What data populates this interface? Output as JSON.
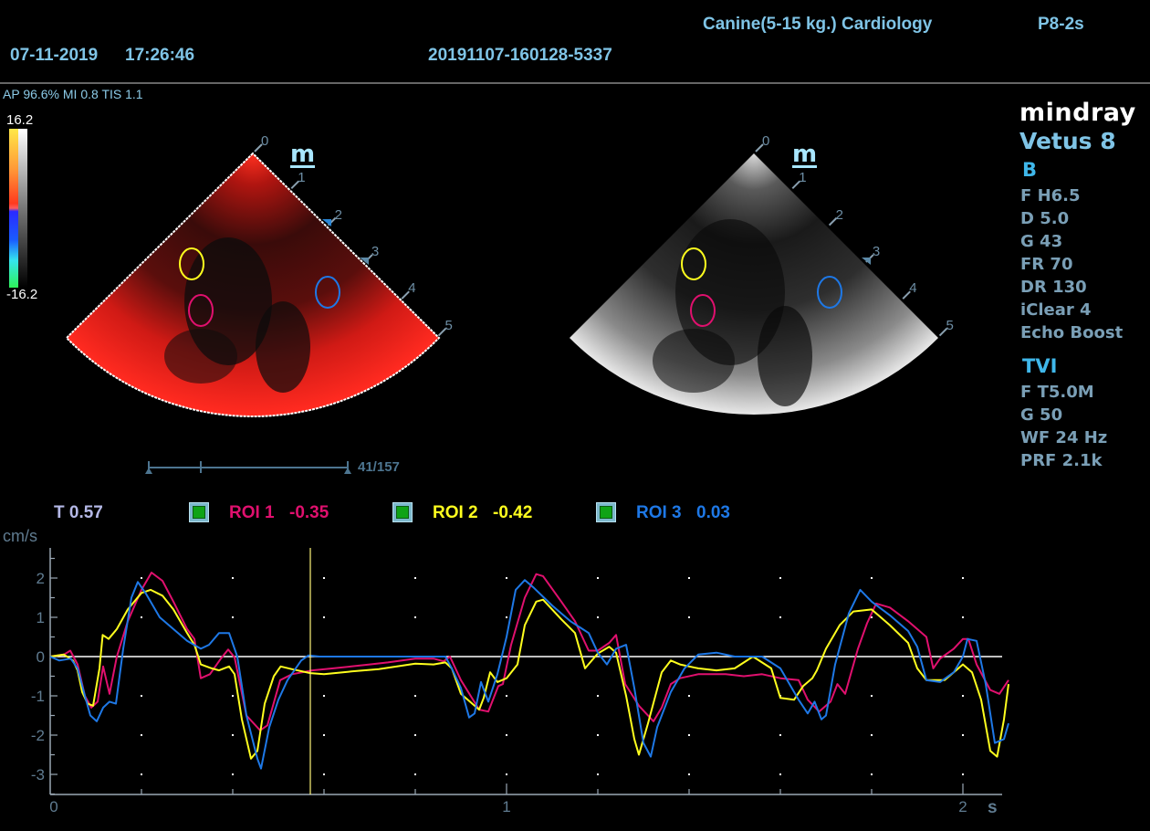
{
  "header": {
    "preset": "Canine(5-15 kg.) Cardiology",
    "probe": "P8-2s",
    "date": "07-11-2019",
    "time": "17:26:46",
    "exam_id": "20191107-160128-5337",
    "acoustic": "AP 96.6%  MI 0.8 TIS 1.1"
  },
  "color_bar": {
    "max": "16.2",
    "min": "-16.2"
  },
  "brand": {
    "logo": "mindray",
    "model": "Vetus 8"
  },
  "b_mode": {
    "title": "B",
    "params": [
      "F H6.5",
      "D 5.0",
      "G 43",
      "FR 70",
      "DR 130",
      "iClear 4",
      "Echo Boost"
    ]
  },
  "tvi_mode": {
    "title": "TVI",
    "params": [
      "F T5.0M",
      "G 50",
      "WF 24 Hz",
      "PRF 2.1k"
    ]
  },
  "image": {
    "depth_marks": [
      "0",
      "1",
      "2",
      "3",
      "4",
      "5"
    ],
    "m_marker": "m",
    "cine_frame": "41/157"
  },
  "roi_colors": {
    "roi1": "#e0106e",
    "roi2": "#ffff1e",
    "roi3": "#1e78e6"
  },
  "trace_panel": {
    "cursor_time": "T 0.57",
    "rois": [
      {
        "label": "ROI 1",
        "value": "-0.35",
        "color": "#e0106e"
      },
      {
        "label": "ROI 2",
        "value": "-0.42",
        "color": "#ffff1e"
      },
      {
        "label": "ROI 3",
        "value": "0.03",
        "color": "#1e78e6"
      }
    ]
  },
  "chart_data": {
    "type": "line",
    "title": "",
    "ylabel": "cm/s",
    "xlabel": "s",
    "xlim": [
      0,
      2.09
    ],
    "ylim": [
      -3.5,
      2.75
    ],
    "x_ticks": [
      "0",
      "1",
      "2"
    ],
    "x_tick_values": [
      0,
      1,
      2
    ],
    "y_ticks": [
      "2",
      "1",
      "0",
      "-1",
      "-2",
      "-3"
    ],
    "y_tick_values": [
      2,
      1,
      0,
      -1,
      -2,
      -3
    ],
    "grid": "dots",
    "cursor_t": 0.57,
    "series": [
      {
        "name": "ROI 1",
        "color": "#e0106e",
        "points": [
          [
            0,
            0
          ],
          [
            0.03,
            0.05
          ],
          [
            0.044,
            0.15
          ],
          [
            0.06,
            -0.2
          ],
          [
            0.076,
            -1.0
          ],
          [
            0.09,
            -1.3
          ],
          [
            0.104,
            -1.15
          ],
          [
            0.116,
            -0.25
          ],
          [
            0.13,
            -0.95
          ],
          [
            0.146,
            0
          ],
          [
            0.17,
            0.9
          ],
          [
            0.2,
            1.7
          ],
          [
            0.222,
            2.14
          ],
          [
            0.246,
            1.93
          ],
          [
            0.27,
            1.4
          ],
          [
            0.3,
            0.7
          ],
          [
            0.316,
            0.45
          ],
          [
            0.33,
            -0.55
          ],
          [
            0.35,
            -0.45
          ],
          [
            0.374,
            -0.05
          ],
          [
            0.39,
            0.18
          ],
          [
            0.404,
            -0.02
          ],
          [
            0.43,
            -1.5
          ],
          [
            0.46,
            -1.88
          ],
          [
            0.476,
            -1.75
          ],
          [
            0.504,
            -0.6
          ],
          [
            0.53,
            -0.45
          ],
          [
            0.574,
            -0.35
          ],
          [
            0.62,
            -0.3
          ],
          [
            0.66,
            -0.25
          ],
          [
            0.7,
            -0.2
          ],
          [
            0.74,
            -0.15
          ],
          [
            0.8,
            -0.05
          ],
          [
            0.84,
            -0.05
          ],
          [
            0.862,
            -0.12
          ],
          [
            0.876,
            0
          ],
          [
            0.9,
            -0.6
          ],
          [
            0.94,
            -1.35
          ],
          [
            0.96,
            -1.4
          ],
          [
            0.982,
            -0.75
          ],
          [
            0.992,
            -0.7
          ],
          [
            1.01,
            0.3
          ],
          [
            1.04,
            1.5
          ],
          [
            1.065,
            2.1
          ],
          [
            1.08,
            2.05
          ],
          [
            1.12,
            1.4
          ],
          [
            1.15,
            0.9
          ],
          [
            1.18,
            0.15
          ],
          [
            1.2,
            0.15
          ],
          [
            1.225,
            0.35
          ],
          [
            1.24,
            0.55
          ],
          [
            1.26,
            -0.7
          ],
          [
            1.29,
            -1.25
          ],
          [
            1.322,
            -1.65
          ],
          [
            1.34,
            -1.3
          ],
          [
            1.36,
            -0.7
          ],
          [
            1.38,
            -0.55
          ],
          [
            1.42,
            -0.45
          ],
          [
            1.48,
            -0.45
          ],
          [
            1.52,
            -0.5
          ],
          [
            1.56,
            -0.45
          ],
          [
            1.6,
            -0.55
          ],
          [
            1.64,
            -0.6
          ],
          [
            1.66,
            -1.1
          ],
          [
            1.685,
            -1.4
          ],
          [
            1.71,
            -1.15
          ],
          [
            1.725,
            -0.7
          ],
          [
            1.742,
            -0.95
          ],
          [
            1.77,
            0.2
          ],
          [
            1.79,
            0.85
          ],
          [
            1.81,
            1.35
          ],
          [
            1.84,
            1.25
          ],
          [
            1.88,
            0.9
          ],
          [
            1.92,
            0.5
          ],
          [
            1.935,
            -0.3
          ],
          [
            1.95,
            -0.05
          ],
          [
            1.98,
            0.2
          ],
          [
            2.0,
            0.45
          ],
          [
            2.012,
            0.45
          ],
          [
            2.03,
            -0.2
          ],
          [
            2.06,
            -0.85
          ],
          [
            2.08,
            -0.95
          ],
          [
            2.1,
            -0.6
          ]
        ]
      },
      {
        "name": "ROI 2",
        "color": "#ffff1e",
        "points": [
          [
            0,
            0
          ],
          [
            0.03,
            0.05
          ],
          [
            0.05,
            -0.1
          ],
          [
            0.06,
            -0.35
          ],
          [
            0.07,
            -0.9
          ],
          [
            0.082,
            -1.2
          ],
          [
            0.094,
            -1.25
          ],
          [
            0.108,
            -0.3
          ],
          [
            0.115,
            0.55
          ],
          [
            0.128,
            0.45
          ],
          [
            0.146,
            0.7
          ],
          [
            0.17,
            1.2
          ],
          [
            0.2,
            1.62
          ],
          [
            0.22,
            1.7
          ],
          [
            0.246,
            1.55
          ],
          [
            0.27,
            1.2
          ],
          [
            0.3,
            0.6
          ],
          [
            0.316,
            0.3
          ],
          [
            0.33,
            -0.2
          ],
          [
            0.354,
            -0.3
          ],
          [
            0.37,
            -0.35
          ],
          [
            0.392,
            -0.25
          ],
          [
            0.404,
            -0.45
          ],
          [
            0.42,
            -1.6
          ],
          [
            0.44,
            -2.6
          ],
          [
            0.454,
            -2.4
          ],
          [
            0.47,
            -1.2
          ],
          [
            0.49,
            -0.5
          ],
          [
            0.505,
            -0.25
          ],
          [
            0.53,
            -0.32
          ],
          [
            0.57,
            -0.42
          ],
          [
            0.6,
            -0.45
          ],
          [
            0.66,
            -0.38
          ],
          [
            0.72,
            -0.32
          ],
          [
            0.76,
            -0.25
          ],
          [
            0.8,
            -0.18
          ],
          [
            0.84,
            -0.2
          ],
          [
            0.866,
            -0.15
          ],
          [
            0.88,
            -0.3
          ],
          [
            0.9,
            -0.95
          ],
          [
            0.94,
            -1.35
          ],
          [
            0.95,
            -1.05
          ],
          [
            0.964,
            -0.4
          ],
          [
            0.98,
            -0.65
          ],
          [
            1.0,
            -0.55
          ],
          [
            1.024,
            -0.2
          ],
          [
            1.04,
            0.8
          ],
          [
            1.065,
            1.4
          ],
          [
            1.08,
            1.45
          ],
          [
            1.12,
            0.95
          ],
          [
            1.15,
            0.6
          ],
          [
            1.172,
            -0.3
          ],
          [
            1.2,
            0.08
          ],
          [
            1.225,
            0.25
          ],
          [
            1.24,
            0.1
          ],
          [
            1.262,
            -1.0
          ],
          [
            1.28,
            -2.1
          ],
          [
            1.29,
            -2.5
          ],
          [
            1.31,
            -1.7
          ],
          [
            1.34,
            -0.4
          ],
          [
            1.36,
            -0.1
          ],
          [
            1.38,
            -0.2
          ],
          [
            1.42,
            -0.3
          ],
          [
            1.46,
            -0.35
          ],
          [
            1.5,
            -0.3
          ],
          [
            1.54,
            0
          ],
          [
            1.58,
            -0.3
          ],
          [
            1.6,
            -1.05
          ],
          [
            1.63,
            -1.1
          ],
          [
            1.65,
            -0.75
          ],
          [
            1.67,
            -0.55
          ],
          [
            1.68,
            -0.35
          ],
          [
            1.7,
            0.2
          ],
          [
            1.73,
            0.8
          ],
          [
            1.76,
            1.15
          ],
          [
            1.8,
            1.2
          ],
          [
            1.84,
            0.8
          ],
          [
            1.88,
            0.35
          ],
          [
            1.9,
            -0.3
          ],
          [
            1.92,
            -0.6
          ],
          [
            1.96,
            -0.6
          ],
          [
            1.98,
            -0.4
          ],
          [
            2.0,
            -0.2
          ],
          [
            2.02,
            -0.4
          ],
          [
            2.04,
            -1.1
          ],
          [
            2.06,
            -2.4
          ],
          [
            2.075,
            -2.55
          ],
          [
            2.09,
            -1.6
          ],
          [
            2.1,
            -0.7
          ]
        ]
      },
      {
        "name": "ROI 3",
        "color": "#1e78e6",
        "points": [
          [
            0,
            0
          ],
          [
            0.02,
            -0.1
          ],
          [
            0.045,
            -0.05
          ],
          [
            0.06,
            -0.3
          ],
          [
            0.076,
            -1.0
          ],
          [
            0.088,
            -1.5
          ],
          [
            0.102,
            -1.65
          ],
          [
            0.116,
            -1.3
          ],
          [
            0.13,
            -1.15
          ],
          [
            0.144,
            -1.2
          ],
          [
            0.16,
            0.2
          ],
          [
            0.178,
            1.5
          ],
          [
            0.192,
            1.9
          ],
          [
            0.21,
            1.6
          ],
          [
            0.24,
            1.0
          ],
          [
            0.27,
            0.7
          ],
          [
            0.3,
            0.4
          ],
          [
            0.33,
            0.2
          ],
          [
            0.348,
            0.3
          ],
          [
            0.37,
            0.6
          ],
          [
            0.392,
            0.6
          ],
          [
            0.41,
            0
          ],
          [
            0.43,
            -1.5
          ],
          [
            0.454,
            -2.6
          ],
          [
            0.462,
            -2.85
          ],
          [
            0.48,
            -1.8
          ],
          [
            0.5,
            -1.1
          ],
          [
            0.52,
            -0.6
          ],
          [
            0.55,
            -0.1
          ],
          [
            0.566,
            0.03
          ],
          [
            0.59,
            0.0
          ],
          [
            0.66,
            0.0
          ],
          [
            0.76,
            0.0
          ],
          [
            0.84,
            0.0
          ],
          [
            0.866,
            0.0
          ],
          [
            0.88,
            -0.3
          ],
          [
            0.9,
            -0.8
          ],
          [
            0.918,
            -1.55
          ],
          [
            0.93,
            -1.45
          ],
          [
            0.944,
            -0.65
          ],
          [
            0.96,
            -1.15
          ],
          [
            0.98,
            -0.45
          ],
          [
            1.0,
            0.5
          ],
          [
            1.02,
            1.7
          ],
          [
            1.04,
            1.95
          ],
          [
            1.06,
            1.75
          ],
          [
            1.1,
            1.3
          ],
          [
            1.14,
            0.9
          ],
          [
            1.18,
            0.6
          ],
          [
            1.2,
            0.1
          ],
          [
            1.22,
            -0.2
          ],
          [
            1.24,
            0.2
          ],
          [
            1.262,
            0.3
          ],
          [
            1.28,
            -0.8
          ],
          [
            1.3,
            -2.2
          ],
          [
            1.316,
            -2.55
          ],
          [
            1.33,
            -1.8
          ],
          [
            1.36,
            -0.9
          ],
          [
            1.39,
            -0.3
          ],
          [
            1.42,
            0.05
          ],
          [
            1.46,
            0.1
          ],
          [
            1.5,
            0.0
          ],
          [
            1.56,
            0.0
          ],
          [
            1.6,
            -0.3
          ],
          [
            1.64,
            -1.1
          ],
          [
            1.66,
            -1.45
          ],
          [
            1.675,
            -1.15
          ],
          [
            1.69,
            -1.6
          ],
          [
            1.7,
            -1.5
          ],
          [
            1.72,
            -0.2
          ],
          [
            1.75,
            1.1
          ],
          [
            1.775,
            1.7
          ],
          [
            1.8,
            1.4
          ],
          [
            1.84,
            1.05
          ],
          [
            1.88,
            0.65
          ],
          [
            1.9,
            0.25
          ],
          [
            1.92,
            -0.6
          ],
          [
            1.95,
            -0.65
          ],
          [
            1.98,
            -0.4
          ],
          [
            2.0,
            0.0
          ],
          [
            2.01,
            0.45
          ],
          [
            2.03,
            0.4
          ],
          [
            2.05,
            -0.7
          ],
          [
            2.07,
            -2.2
          ],
          [
            2.09,
            -2.1
          ],
          [
            2.1,
            -1.7
          ]
        ]
      }
    ]
  }
}
